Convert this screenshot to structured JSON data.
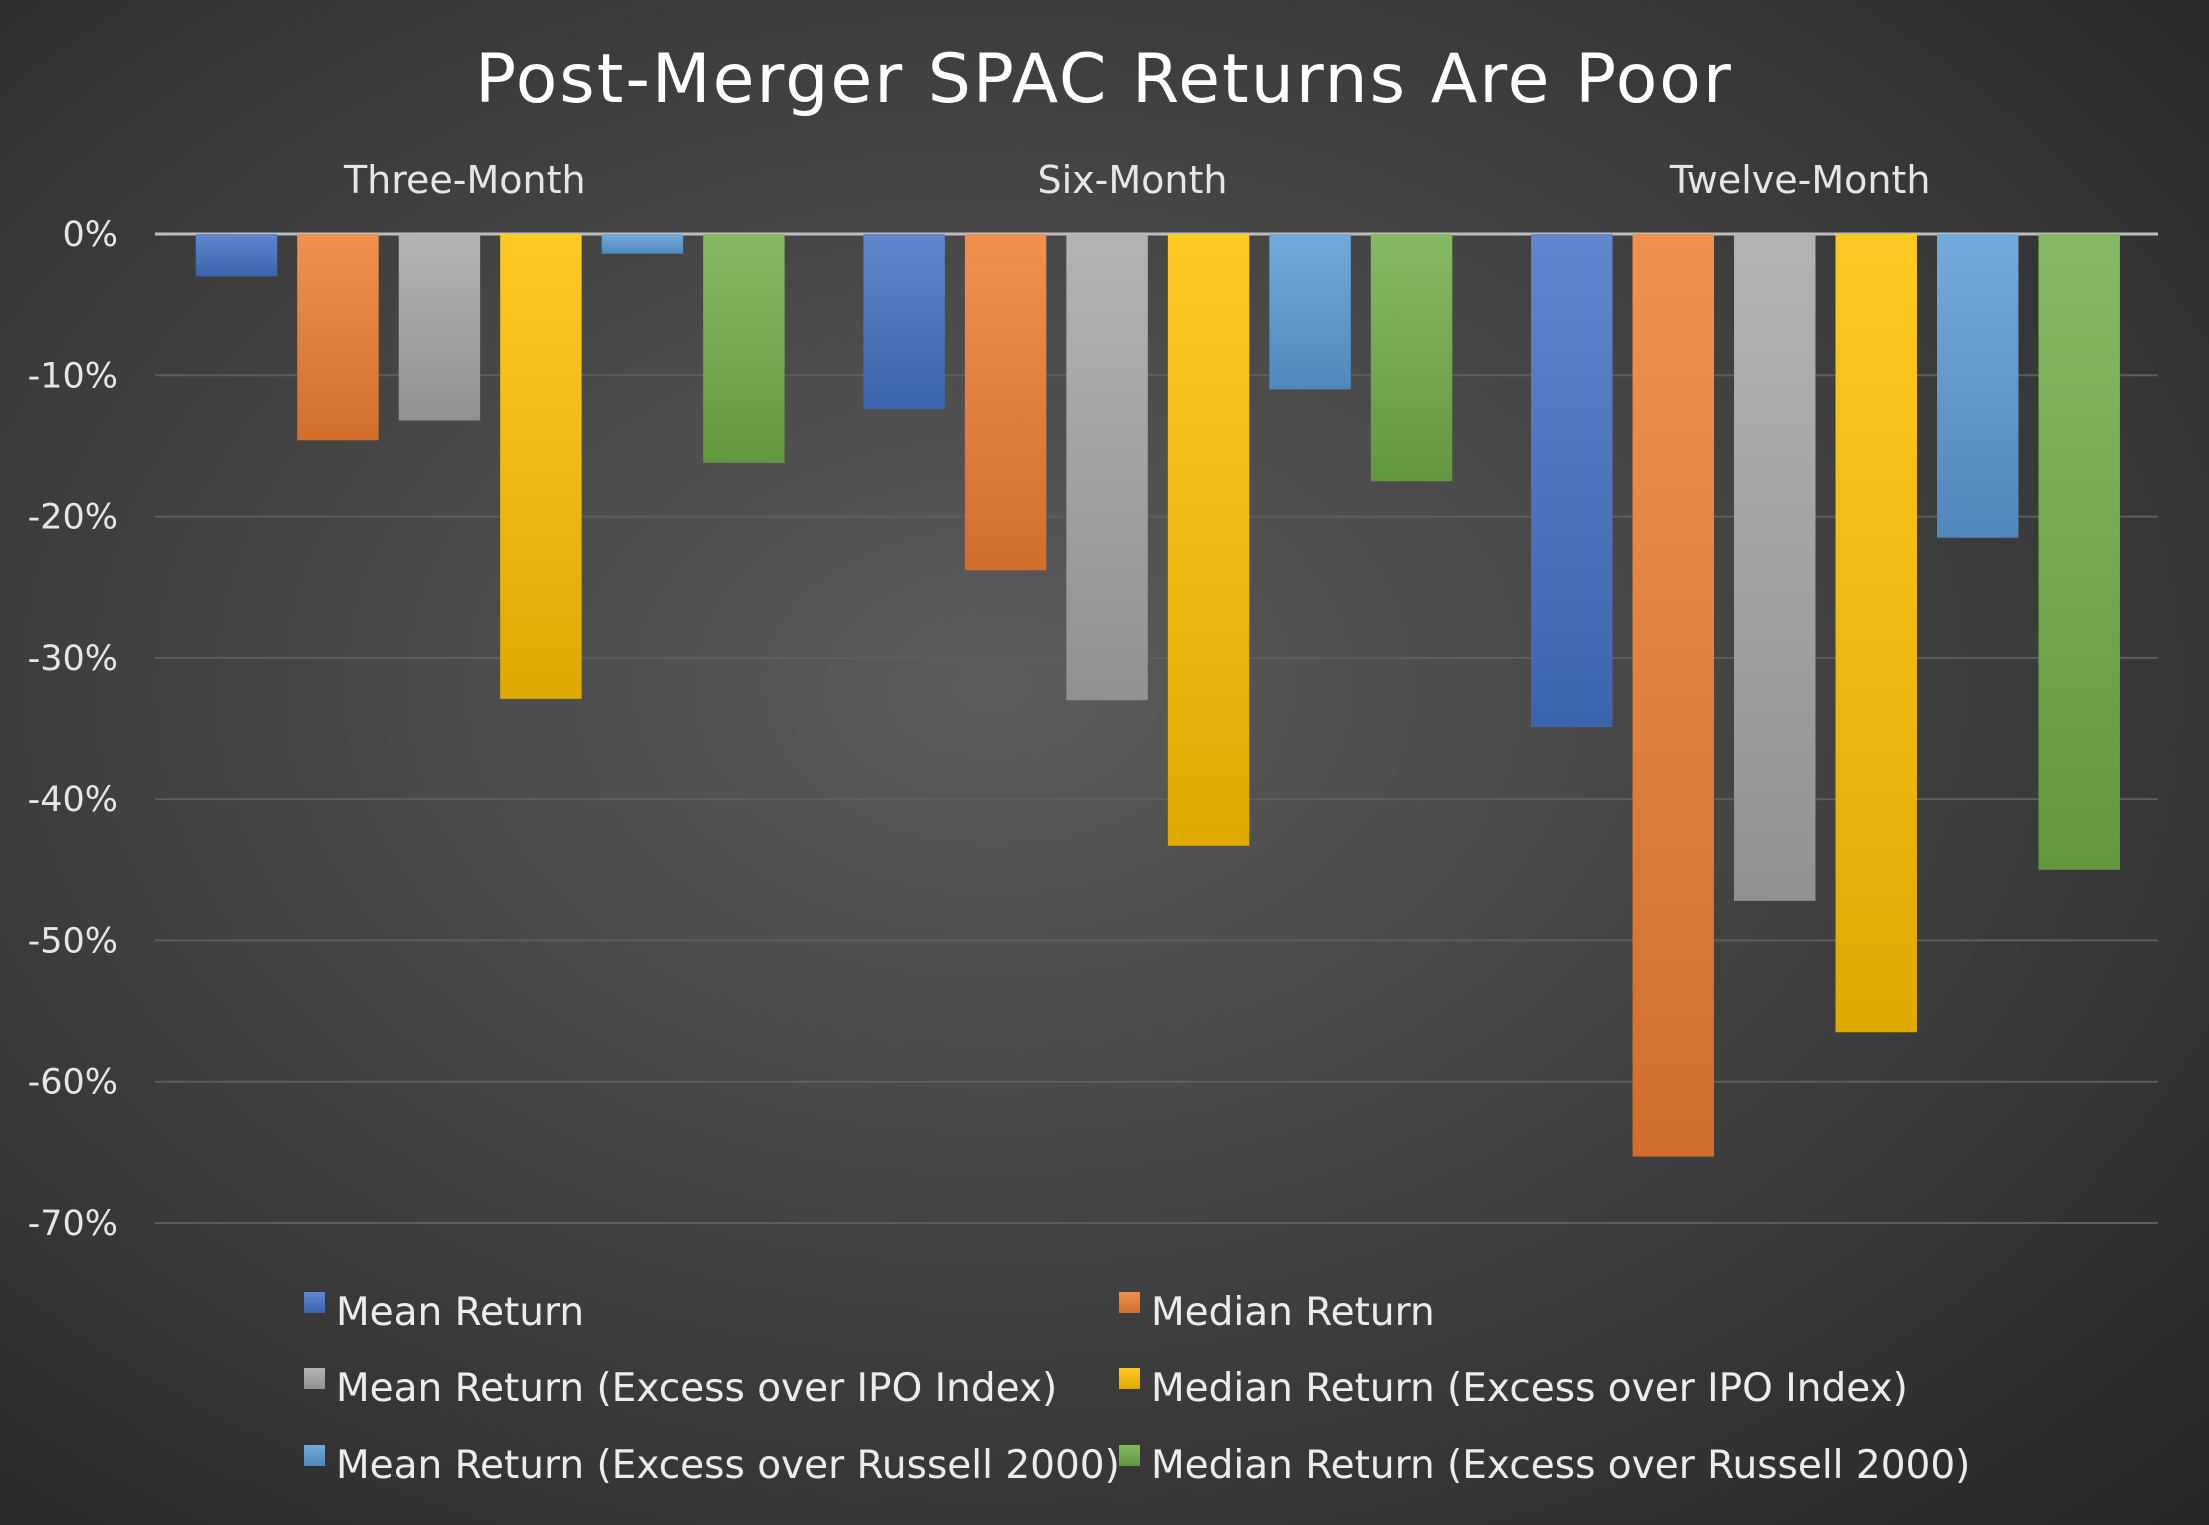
{
  "chart_data": {
    "type": "bar",
    "title": "Post-Merger SPAC Returns Are Poor",
    "categories": [
      "Three-Month",
      "Six-Month",
      "Twelve-Month"
    ],
    "ylim": [
      -70,
      0
    ],
    "yticks": [
      "0%",
      "-10%",
      "-20%",
      "-30%",
      "-40%",
      "-50%",
      "-60%",
      "-70%"
    ],
    "grid": true,
    "legend_placement": "bottom",
    "series": [
      {
        "name": "Mean Return",
        "color": "#4472c4",
        "values": [
          -3.0,
          -12.4,
          -34.9
        ]
      },
      {
        "name": "Median Return",
        "color": "#ed7d31",
        "values": [
          -14.6,
          -23.8,
          -65.3
        ]
      },
      {
        "name": "Mean Return (Excess over IPO Index)",
        "color": "#a5a5a5",
        "values": [
          -13.2,
          -33.0,
          -47.2
        ]
      },
      {
        "name": "Median Return (Excess over IPO Index)",
        "color": "#ffc000",
        "values": [
          -32.9,
          -43.3,
          -56.5
        ]
      },
      {
        "name": "Mean Return (Excess over Russell 2000)",
        "color": "#5b9bd5",
        "values": [
          -1.4,
          -11.0,
          -21.5
        ]
      },
      {
        "name": "Median Return (Excess over Russell 2000)",
        "color": "#70ad47",
        "values": [
          -16.2,
          -17.5,
          -45.0
        ]
      }
    ]
  }
}
